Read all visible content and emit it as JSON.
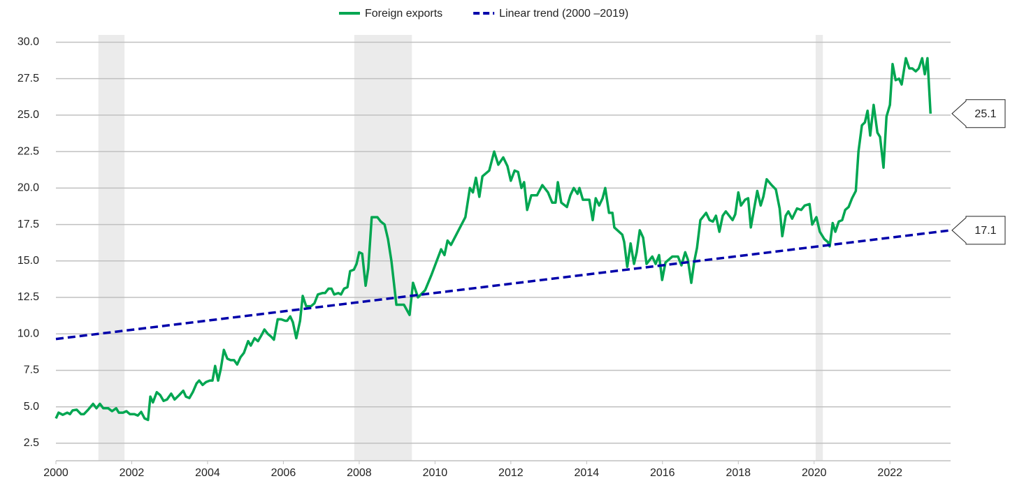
{
  "chart_data": {
    "type": "line",
    "xlim": [
      2000,
      2023.6
    ],
    "xticks": [
      2000,
      2002,
      2004,
      2006,
      2008,
      2010,
      2012,
      2014,
      2016,
      2018,
      2020,
      2022
    ],
    "ylim": [
      1.3,
      30.5
    ],
    "yticks": [
      2.5,
      {
        "value": 5,
        "label": "5.0"
      },
      7.5,
      {
        "value": 10,
        "label": "10.0"
      },
      12.5,
      {
        "value": 15,
        "label": "15.0"
      },
      17.5,
      {
        "value": 20,
        "label": "20.0"
      },
      22.5,
      {
        "value": 25,
        "label": "25.0"
      },
      27.5,
      {
        "value": 30,
        "label": "30.0"
      }
    ],
    "grid": true,
    "legend": "top",
    "shaded_periods": [
      [
        2001.12,
        2001.81
      ],
      [
        2007.87,
        2009.39
      ],
      [
        2020.04,
        2020.23
      ]
    ],
    "shade_color": "#ebebeb",
    "callouts": [
      25.1,
      17.1
    ],
    "series": [
      {
        "name": "Foreign exports",
        "color": "#00a651",
        "dash": false,
        "x": [
          2000.0,
          2000.07,
          2000.18,
          2000.3,
          2000.37,
          2000.44,
          2000.55,
          2000.66,
          2000.74,
          2000.85,
          2000.98,
          2001.07,
          2001.16,
          2001.25,
          2001.38,
          2001.48,
          2001.59,
          2001.66,
          2001.77,
          2001.86,
          2001.95,
          2002.07,
          2002.16,
          2002.25,
          2002.34,
          2002.43,
          2002.49,
          2002.56,
          2002.66,
          2002.75,
          2002.84,
          2002.93,
          2003.04,
          2003.13,
          2003.25,
          2003.36,
          2003.43,
          2003.52,
          2003.61,
          2003.71,
          2003.78,
          2003.87,
          2003.96,
          2004.06,
          2004.13,
          2004.2,
          2004.28,
          2004.35,
          2004.43,
          2004.52,
          2004.61,
          2004.7,
          2004.78,
          2004.87,
          2004.96,
          2005.07,
          2005.14,
          2005.24,
          2005.33,
          2005.42,
          2005.5,
          2005.59,
          2005.68,
          2005.75,
          2005.85,
          2005.94,
          2006.05,
          2006.1,
          2006.18,
          2006.25,
          2006.34,
          2006.44,
          2006.51,
          2006.6,
          2006.73,
          2006.82,
          2006.91,
          2007.03,
          2007.1,
          2007.19,
          2007.27,
          2007.34,
          2007.45,
          2007.52,
          2007.6,
          2007.69,
          2007.76,
          2007.86,
          2007.93,
          2008.0,
          2008.08,
          2008.17,
          2008.24,
          2008.33,
          2008.48,
          2008.57,
          2008.67,
          2008.76,
          2008.85,
          2008.98,
          2009.18,
          2009.33,
          2009.42,
          2009.55,
          2009.74,
          2009.9,
          2010.16,
          2010.25,
          2010.33,
          2010.42,
          2010.64,
          2010.8,
          2010.92,
          2011.0,
          2011.08,
          2011.17,
          2011.25,
          2011.43,
          2011.56,
          2011.67,
          2011.8,
          2011.91,
          2012.0,
          2012.1,
          2012.19,
          2012.28,
          2012.35,
          2012.43,
          2012.54,
          2012.69,
          2012.83,
          2012.98,
          2013.09,
          2013.18,
          2013.24,
          2013.33,
          2013.48,
          2013.57,
          2013.66,
          2013.76,
          2013.81,
          2013.9,
          2014.07,
          2014.16,
          2014.24,
          2014.33,
          2014.42,
          2014.49,
          2014.59,
          2014.68,
          2014.73,
          2014.94,
          2014.99,
          2015.07,
          2015.16,
          2015.25,
          2015.32,
          2015.4,
          2015.49,
          2015.58,
          2015.73,
          2015.82,
          2015.91,
          2015.99,
          2016.08,
          2016.26,
          2016.41,
          2016.5,
          2016.6,
          2016.67,
          2016.76,
          2016.84,
          2016.91,
          2017.0,
          2017.15,
          2017.24,
          2017.33,
          2017.41,
          2017.5,
          2017.59,
          2017.67,
          2017.85,
          2017.92,
          2018.0,
          2018.07,
          2018.18,
          2018.26,
          2018.33,
          2018.5,
          2018.59,
          2018.66,
          2018.75,
          2018.88,
          2018.99,
          2019.09,
          2019.16,
          2019.25,
          2019.32,
          2019.42,
          2019.55,
          2019.66,
          2019.75,
          2019.88,
          2019.95,
          2020.06,
          2020.15,
          2020.27,
          2020.36,
          2020.41,
          2020.49,
          2020.56,
          2020.65,
          2020.74,
          2020.82,
          2020.91,
          2021.0,
          2021.1,
          2021.17,
          2021.26,
          2021.34,
          2021.41,
          2021.48,
          2021.57,
          2021.67,
          2021.74,
          2021.83,
          2021.91,
          2022.0,
          2022.07,
          2022.15,
          2022.24,
          2022.31,
          2022.42,
          2022.51,
          2022.59,
          2022.68,
          2022.76,
          2022.85,
          2022.92,
          2022.99,
          2023.07
        ],
        "values": [
          4.2,
          4.6,
          4.45,
          4.6,
          4.5,
          4.75,
          4.8,
          4.5,
          4.5,
          4.8,
          5.2,
          4.9,
          5.2,
          4.9,
          4.9,
          4.7,
          4.9,
          4.6,
          4.6,
          4.7,
          4.5,
          4.5,
          4.4,
          4.65,
          4.2,
          4.1,
          5.7,
          5.3,
          6.0,
          5.8,
          5.4,
          5.5,
          5.9,
          5.5,
          5.8,
          6.1,
          5.7,
          5.6,
          6.0,
          6.6,
          6.8,
          6.5,
          6.7,
          6.8,
          6.8,
          7.8,
          6.8,
          7.6,
          8.9,
          8.3,
          8.2,
          8.2,
          7.9,
          8.4,
          8.7,
          9.5,
          9.2,
          9.7,
          9.5,
          9.9,
          10.3,
          10.0,
          9.8,
          9.6,
          11.0,
          11.0,
          10.9,
          10.9,
          11.2,
          10.8,
          9.7,
          10.9,
          12.6,
          11.9,
          11.9,
          12.1,
          12.7,
          12.8,
          12.8,
          13.1,
          13.1,
          12.7,
          12.8,
          12.7,
          13.1,
          13.2,
          14.3,
          14.4,
          14.8,
          15.6,
          15.5,
          13.3,
          14.5,
          18.0,
          18.0,
          17.7,
          17.5,
          16.5,
          15.0,
          12.0,
          12.0,
          11.3,
          13.5,
          12.5,
          13.0,
          14.0,
          15.8,
          15.4,
          16.4,
          16.1,
          17.2,
          18.0,
          20.0,
          19.7,
          20.7,
          19.4,
          20.8,
          21.2,
          22.5,
          21.6,
          22.1,
          21.5,
          20.5,
          21.2,
          21.1,
          20.0,
          20.4,
          18.5,
          19.5,
          19.5,
          20.2,
          19.7,
          19.0,
          19.0,
          20.4,
          19.0,
          18.7,
          19.5,
          20.0,
          19.6,
          20.0,
          19.2,
          19.2,
          17.8,
          19.3,
          18.8,
          19.3,
          20.0,
          18.3,
          18.3,
          17.3,
          16.8,
          16.3,
          14.6,
          16.2,
          14.8,
          15.6,
          17.1,
          16.6,
          14.8,
          15.3,
          14.8,
          15.4,
          13.7,
          14.9,
          15.3,
          15.3,
          14.7,
          15.6,
          15.1,
          13.5,
          15.0,
          15.9,
          17.8,
          18.3,
          17.8,
          17.7,
          18.1,
          17.0,
          18.1,
          18.4,
          17.8,
          18.2,
          19.7,
          18.8,
          19.2,
          19.3,
          17.3,
          19.8,
          18.8,
          19.4,
          20.6,
          20.2,
          19.9,
          18.6,
          16.7,
          18.1,
          18.4,
          17.9,
          18.6,
          18.5,
          18.8,
          18.9,
          17.5,
          18.0,
          17.0,
          16.5,
          16.3,
          16.0,
          17.6,
          17.0,
          17.7,
          17.8,
          18.5,
          18.7,
          19.3,
          19.8,
          22.5,
          24.3,
          24.5,
          25.3,
          23.6,
          25.7,
          23.8,
          23.5,
          21.4,
          24.9,
          25.7,
          28.5,
          27.4,
          27.5,
          27.1,
          28.9,
          28.2,
          28.2,
          28.0,
          28.2,
          28.9,
          27.8,
          28.9,
          25.1
        ]
      },
      {
        "name": "Linear trend (2000 –2019)",
        "color": "#0000aa",
        "dash": true,
        "x": [
          2000,
          2023.6
        ],
        "values": [
          9.65,
          17.1
        ]
      }
    ]
  }
}
